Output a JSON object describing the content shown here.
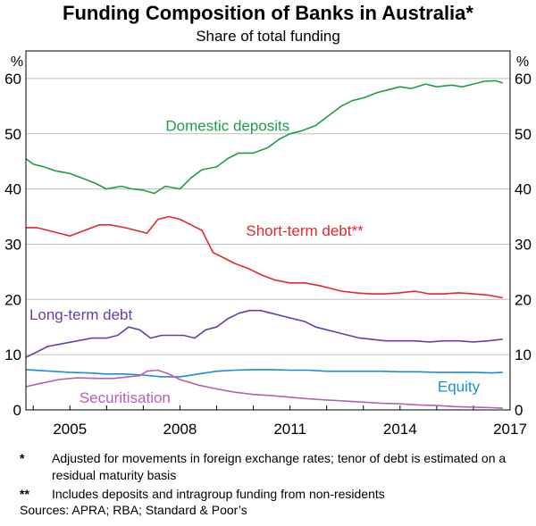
{
  "header": {
    "title": "Funding Composition of Banks in Australia*",
    "subtitle": "Share of total funding"
  },
  "footnotes": [
    {
      "marker": "*",
      "text": "Adjusted for movements in foreign exchange rates; tenor of debt is estimated on a residual maturity basis"
    },
    {
      "marker": "**",
      "text": "Includes deposits and intragroup funding from non-residents"
    }
  ],
  "sources": "Sources: APRA; RBA; Standard & Poor’s",
  "chart_data": {
    "type": "line",
    "title": "Funding Composition of Banks in Australia*",
    "subtitle": "Share of total funding",
    "ylabel_left": "%",
    "ylabel_right": "%",
    "ylim": [
      0,
      65
    ],
    "yticks": [
      0,
      10,
      20,
      30,
      40,
      50,
      60
    ],
    "xlim": [
      2003.8,
      2017.0
    ],
    "xticks": [
      2005,
      2008,
      2011,
      2014,
      2017
    ],
    "grid": true,
    "legend": "inline-labels",
    "series": [
      {
        "name": "Domestic deposits",
        "color": "#1f9e48",
        "x": [
          2003.8,
          2004.0,
          2004.3,
          2004.6,
          2005.0,
          2005.4,
          2005.7,
          2006.0,
          2006.4,
          2006.7,
          2007.0,
          2007.3,
          2007.6,
          2008.0,
          2008.3,
          2008.6,
          2009.0,
          2009.3,
          2009.6,
          2010.0,
          2010.4,
          2010.7,
          2011.0,
          2011.3,
          2011.7,
          2012.0,
          2012.4,
          2012.7,
          2013.0,
          2013.4,
          2013.7,
          2014.0,
          2014.3,
          2014.7,
          2015.0,
          2015.4,
          2015.7,
          2016.0,
          2016.3,
          2016.6,
          2016.8
        ],
        "values": [
          45.5,
          44.5,
          44.0,
          43.3,
          42.8,
          41.8,
          41.0,
          40.0,
          40.5,
          40.0,
          39.8,
          39.2,
          40.5,
          40.0,
          42.0,
          43.5,
          44.0,
          45.5,
          46.5,
          46.5,
          47.5,
          49.0,
          50.0,
          50.5,
          51.5,
          53.0,
          55.0,
          56.0,
          56.5,
          57.5,
          58.0,
          58.5,
          58.2,
          59.0,
          58.5,
          58.8,
          58.5,
          59.0,
          59.5,
          59.6,
          59.2
        ]
      },
      {
        "name": "Short-term debt**",
        "color": "#e8262d",
        "x": [
          2003.8,
          2004.1,
          2004.4,
          2004.7,
          2005.0,
          2005.4,
          2005.8,
          2006.1,
          2006.5,
          2006.8,
          2007.1,
          2007.4,
          2007.7,
          2008.0,
          2008.3,
          2008.6,
          2008.9,
          2009.2,
          2009.5,
          2009.9,
          2010.2,
          2010.6,
          2011.0,
          2011.4,
          2011.8,
          2012.1,
          2012.4,
          2012.8,
          2013.2,
          2013.6,
          2014.0,
          2014.4,
          2014.8,
          2015.2,
          2015.6,
          2016.0,
          2016.4,
          2016.8
        ],
        "values": [
          33.0,
          33.0,
          32.5,
          32.0,
          31.5,
          32.5,
          33.5,
          33.5,
          33.0,
          32.5,
          32.0,
          34.5,
          35.0,
          34.5,
          33.5,
          32.5,
          28.5,
          27.5,
          26.5,
          25.5,
          24.5,
          23.5,
          23.0,
          23.0,
          22.5,
          22.0,
          21.5,
          21.2,
          21.0,
          21.0,
          21.2,
          21.5,
          21.0,
          21.0,
          21.2,
          21.0,
          20.8,
          20.3
        ]
      },
      {
        "name": "Long-term debt",
        "color": "#6a3fa0",
        "x": [
          2003.8,
          2004.1,
          2004.4,
          2004.8,
          2005.2,
          2005.6,
          2006.0,
          2006.3,
          2006.6,
          2006.9,
          2007.2,
          2007.5,
          2007.8,
          2008.1,
          2008.4,
          2008.7,
          2009.0,
          2009.3,
          2009.6,
          2009.9,
          2010.2,
          2010.5,
          2010.8,
          2011.1,
          2011.4,
          2011.7,
          2012.0,
          2012.3,
          2012.6,
          2012.9,
          2013.2,
          2013.6,
          2014.0,
          2014.4,
          2014.8,
          2015.2,
          2015.6,
          2016.0,
          2016.4,
          2016.8
        ],
        "values": [
          9.5,
          10.5,
          11.5,
          12.0,
          12.5,
          13.0,
          13.0,
          13.5,
          15.0,
          14.5,
          13.0,
          13.5,
          13.5,
          13.5,
          13.0,
          14.5,
          15.0,
          16.5,
          17.5,
          18.0,
          18.0,
          17.5,
          17.0,
          16.5,
          16.0,
          15.0,
          14.5,
          14.0,
          13.5,
          13.0,
          12.8,
          12.5,
          12.5,
          12.5,
          12.3,
          12.5,
          12.5,
          12.3,
          12.5,
          12.8
        ]
      },
      {
        "name": "Equity",
        "color": "#1a8fd1",
        "x": [
          2003.8,
          2004.5,
          2005.0,
          2005.5,
          2006.0,
          2006.5,
          2007.0,
          2007.5,
          2008.0,
          2008.5,
          2009.0,
          2009.5,
          2010.0,
          2010.5,
          2011.0,
          2011.5,
          2012.0,
          2012.5,
          2013.0,
          2013.5,
          2014.0,
          2014.5,
          2015.0,
          2015.5,
          2016.0,
          2016.5,
          2016.8
        ],
        "values": [
          7.3,
          7.0,
          6.8,
          6.7,
          6.5,
          6.5,
          6.3,
          6.0,
          6.0,
          6.5,
          7.0,
          7.2,
          7.3,
          7.3,
          7.2,
          7.2,
          7.0,
          7.0,
          7.0,
          7.0,
          6.9,
          6.9,
          6.8,
          6.8,
          6.8,
          6.7,
          6.8
        ]
      },
      {
        "name": "Securitisation",
        "color": "#b660b3",
        "x": [
          2003.8,
          2004.2,
          2004.7,
          2005.2,
          2005.7,
          2006.2,
          2006.6,
          2006.9,
          2007.1,
          2007.4,
          2007.7,
          2008.0,
          2008.5,
          2009.0,
          2009.5,
          2010.0,
          2010.5,
          2011.0,
          2011.5,
          2012.0,
          2012.5,
          2013.0,
          2013.5,
          2014.0,
          2014.5,
          2015.0,
          2015.5,
          2016.0,
          2016.5,
          2016.8
        ],
        "values": [
          4.2,
          4.8,
          5.5,
          5.8,
          5.7,
          5.7,
          6.0,
          6.2,
          7.0,
          7.2,
          6.5,
          5.5,
          4.5,
          3.8,
          3.2,
          2.8,
          2.6,
          2.3,
          2.0,
          1.8,
          1.6,
          1.4,
          1.2,
          1.1,
          0.9,
          0.8,
          0.6,
          0.5,
          0.4,
          0.3
        ]
      }
    ]
  }
}
